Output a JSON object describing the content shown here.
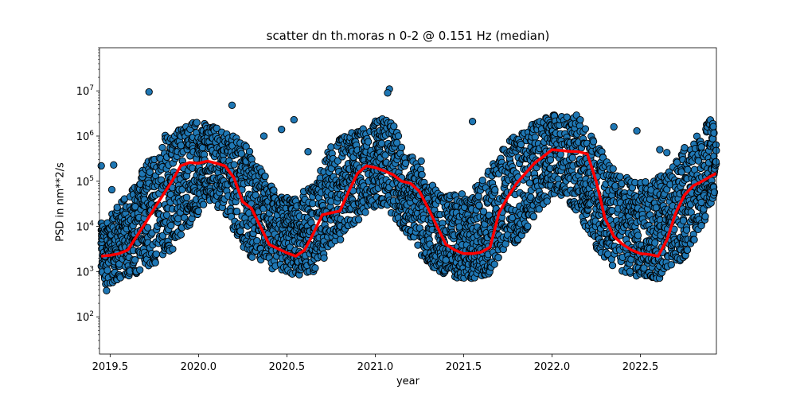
{
  "chart_data": {
    "type": "scatter",
    "title": "scatter dn th.moras n 0-2 @ 0.151 Hz (median)",
    "xlabel": "year",
    "ylabel": "PSD in nm**2/s",
    "xlim": [
      2019.44,
      2022.93
    ],
    "ylim": [
      15,
      90000000
    ],
    "yscale": "log",
    "grid": false,
    "x_ticks": [
      2019.5,
      2020.0,
      2020.5,
      2021.0,
      2021.5,
      2022.0,
      2022.5
    ],
    "x_tick_labels": [
      "2019.5",
      "2020.0",
      "2020.5",
      "2021.0",
      "2021.5",
      "2022.0",
      "2022.5"
    ],
    "y_ticks": [
      100,
      1000,
      10000,
      100000,
      1000000,
      10000000
    ],
    "y_tick_labels": [
      "10^2",
      "10^3",
      "10^4",
      "10^5",
      "10^6",
      "10^7"
    ],
    "colors": {
      "scatter_fill": "#1f77b4",
      "scatter_edge": "#000000",
      "median_line": "#ff0000"
    },
    "series": [
      {
        "kind": "scatter",
        "seasonal_envelope": {
          "x": [
            2019.45,
            2019.55,
            2019.65,
            2019.75,
            2019.85,
            2019.95,
            2020.05,
            2020.15,
            2020.25,
            2020.35,
            2020.45,
            2020.55,
            2020.65,
            2020.75,
            2020.85,
            2020.95,
            2021.05,
            2021.15,
            2021.25,
            2021.35,
            2021.45,
            2021.55,
            2021.65,
            2021.75,
            2021.85,
            2021.95,
            2022.05,
            2022.15,
            2022.25,
            2022.35,
            2022.45,
            2022.55,
            2022.65,
            2022.75,
            2022.85,
            2022.92
          ],
          "y_low": [
            500,
            600,
            900,
            1500,
            3000,
            10000,
            40000,
            20000,
            3000,
            1500,
            1000,
            800,
            1000,
            3000,
            8000,
            20000,
            30000,
            10000,
            2500,
            1000,
            700,
            700,
            900,
            2500,
            8000,
            30000,
            50000,
            20000,
            3000,
            1200,
            800,
            600,
            800,
            2000,
            10000,
            30000
          ],
          "y_high": [
            12000,
            30000,
            100000,
            600000,
            1500000,
            2000000,
            2000000,
            1500000,
            800000,
            200000,
            50000,
            40000,
            100000,
            600000,
            1200000,
            2000000,
            3000000,
            1000000,
            200000,
            60000,
            50000,
            60000,
            200000,
            800000,
            1500000,
            2500000,
            3500000,
            3000000,
            800000,
            200000,
            100000,
            100000,
            150000,
            500000,
            1500000,
            3000000
          ]
        },
        "outliers": [
          {
            "x": 2019.72,
            "y": 9500000
          },
          {
            "x": 2021.08,
            "y": 11000000
          },
          {
            "x": 2021.07,
            "y": 9000000
          },
          {
            "x": 2020.54,
            "y": 2300000
          },
          {
            "x": 2021.55,
            "y": 2100000
          },
          {
            "x": 2019.45,
            "y": 220000
          },
          {
            "x": 2019.52,
            "y": 230000
          },
          {
            "x": 2019.51,
            "y": 65000
          },
          {
            "x": 2020.19,
            "y": 4800000
          },
          {
            "x": 2020.47,
            "y": 1400000
          },
          {
            "x": 2020.37,
            "y": 1000000
          },
          {
            "x": 2022.35,
            "y": 1600000
          },
          {
            "x": 2022.48,
            "y": 1300000
          },
          {
            "x": 2022.61,
            "y": 500000
          },
          {
            "x": 2022.75,
            "y": 550000
          },
          {
            "x": 2021.26,
            "y": 280000
          },
          {
            "x": 2021.4,
            "y": 1800
          },
          {
            "x": 2022.65,
            "y": 430000
          },
          {
            "x": 2022.52,
            "y": 1200
          },
          {
            "x": 2020.62,
            "y": 450000
          },
          {
            "x": 2019.48,
            "y": 380
          }
        ]
      },
      {
        "kind": "line",
        "x": [
          2019.45,
          2019.5,
          2019.55,
          2019.6,
          2019.65,
          2019.7,
          2019.75,
          2019.8,
          2019.85,
          2019.9,
          2019.95,
          2020.0,
          2020.05,
          2020.1,
          2020.15,
          2020.2,
          2020.25,
          2020.3,
          2020.35,
          2020.4,
          2020.45,
          2020.5,
          2020.55,
          2020.6,
          2020.65,
          2020.7,
          2020.75,
          2020.8,
          2020.85,
          2020.9,
          2020.95,
          2021.0,
          2021.05,
          2021.1,
          2021.15,
          2021.2,
          2021.25,
          2021.3,
          2021.35,
          2021.4,
          2021.45,
          2021.5,
          2021.55,
          2021.6,
          2021.65,
          2021.7,
          2021.75,
          2021.8,
          2021.85,
          2021.9,
          2021.95,
          2022.0,
          2022.05,
          2022.1,
          2022.15,
          2022.2,
          2022.25,
          2022.3,
          2022.35,
          2022.4,
          2022.45,
          2022.5,
          2022.55,
          2022.6,
          2022.65,
          2022.7,
          2022.75,
          2022.8,
          2022.85,
          2022.9,
          2022.93
        ],
        "y": [
          2200,
          2300,
          2500,
          3000,
          6000,
          12000,
          25000,
          50000,
          100000,
          220000,
          260000,
          250000,
          280000,
          250000,
          220000,
          120000,
          35000,
          25000,
          10000,
          4000,
          3200,
          2600,
          2200,
          3000,
          7000,
          18000,
          20000,
          22000,
          60000,
          150000,
          220000,
          200000,
          170000,
          140000,
          100000,
          90000,
          60000,
          25000,
          10000,
          4000,
          3000,
          2500,
          2500,
          2700,
          3500,
          20000,
          45000,
          90000,
          150000,
          250000,
          350000,
          500000,
          480000,
          460000,
          450000,
          400000,
          100000,
          15000,
          6000,
          4000,
          3000,
          2500,
          2400,
          2200,
          5000,
          20000,
          50000,
          80000,
          100000,
          130000,
          150000
        ]
      }
    ]
  }
}
